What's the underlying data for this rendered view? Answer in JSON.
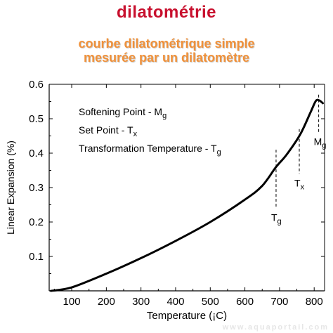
{
  "header": {
    "title": "dilatométrie",
    "subtitle_line1": "courbe dilatométrique simple",
    "subtitle_line2": "mesurée par un dilatomètre"
  },
  "watermark": "www.aquaportail.com",
  "chart_data": {
    "type": "line",
    "title": "",
    "xlabel": "Temperature (¡C)",
    "ylabel": "Linear Expansion (%)",
    "xlim": [
      35,
      830
    ],
    "ylim": [
      0.0,
      0.6
    ],
    "xticks": [
      100,
      200,
      300,
      400,
      500,
      600,
      700,
      800
    ],
    "yticks": [
      0.1,
      0.2,
      0.3,
      0.4,
      0.5,
      0.6
    ],
    "ytick_labels": [
      "0.1",
      "0.2",
      "0.3",
      "0.4",
      "0.5",
      "0.6"
    ],
    "grid": false,
    "series": [
      {
        "x": [
          40,
          100,
          200,
          300,
          400,
          500,
          600,
          650,
          690,
          720,
          760,
          790,
          805,
          815,
          825
        ],
        "y": [
          0.0,
          0.01,
          0.05,
          0.095,
          0.145,
          0.2,
          0.265,
          0.305,
          0.36,
          0.395,
          0.455,
          0.52,
          0.552,
          0.553,
          0.545
        ]
      }
    ],
    "markers": [
      {
        "label": "T",
        "sub": "g",
        "x": 690,
        "y_top": 0.41,
        "y_bottom": 0.24
      },
      {
        "label": "T",
        "sub": "x",
        "x": 757,
        "y_top": 0.47,
        "y_bottom": 0.34
      },
      {
        "label": "M",
        "sub": "g",
        "x": 813,
        "y_top": 0.57,
        "y_bottom": 0.46
      }
    ],
    "legend_notes": [
      {
        "text": "Softening Point - M",
        "sub": "g"
      },
      {
        "text": "Set Point - T",
        "sub": "x"
      },
      {
        "text": "Transformation Temperature - T",
        "sub": "g"
      }
    ]
  }
}
